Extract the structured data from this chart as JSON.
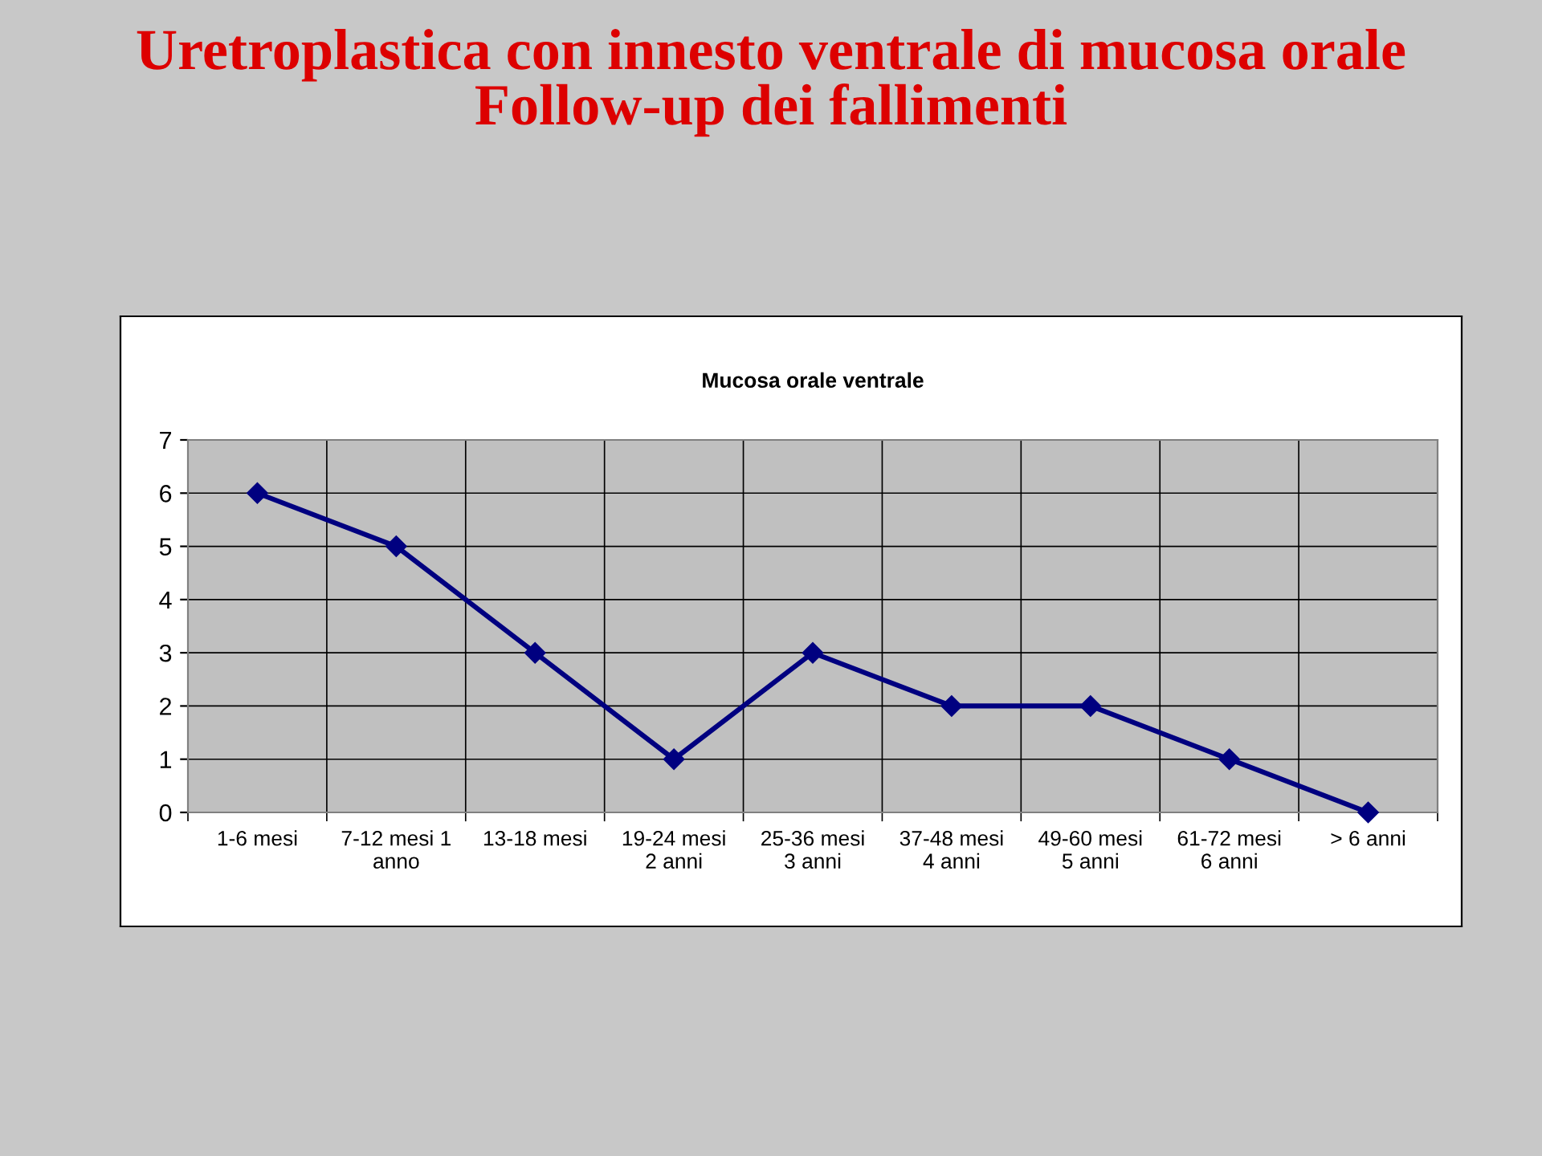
{
  "chart_data": {
    "type": "line",
    "title": "Mucosa orale ventrale",
    "annotations": [
      "Uretroplastica con innesto ventrale di mucosa orale\nFollow-up dei fallimenti"
    ],
    "categories": [
      "1-6 mesi",
      "7-12 mesi 1\nanno",
      "13-18 mesi",
      "19-24 mesi\n2 anni",
      "25-36 mesi\n3 anni",
      "37-48 mesi\n4 anni",
      "49-60 mesi\n5 anni",
      "61-72 mesi\n6 anni",
      "> 6 anni"
    ],
    "series": [
      {
        "color": "#000080",
        "values": [
          6,
          5,
          3,
          1,
          3,
          2,
          2,
          1,
          0
        ]
      }
    ],
    "ylim": [
      0,
      7
    ],
    "yticks": [
      0,
      1,
      2,
      3,
      4,
      5,
      6,
      7
    ],
    "grid": true,
    "marker": "diamond",
    "line_style": "solid"
  }
}
